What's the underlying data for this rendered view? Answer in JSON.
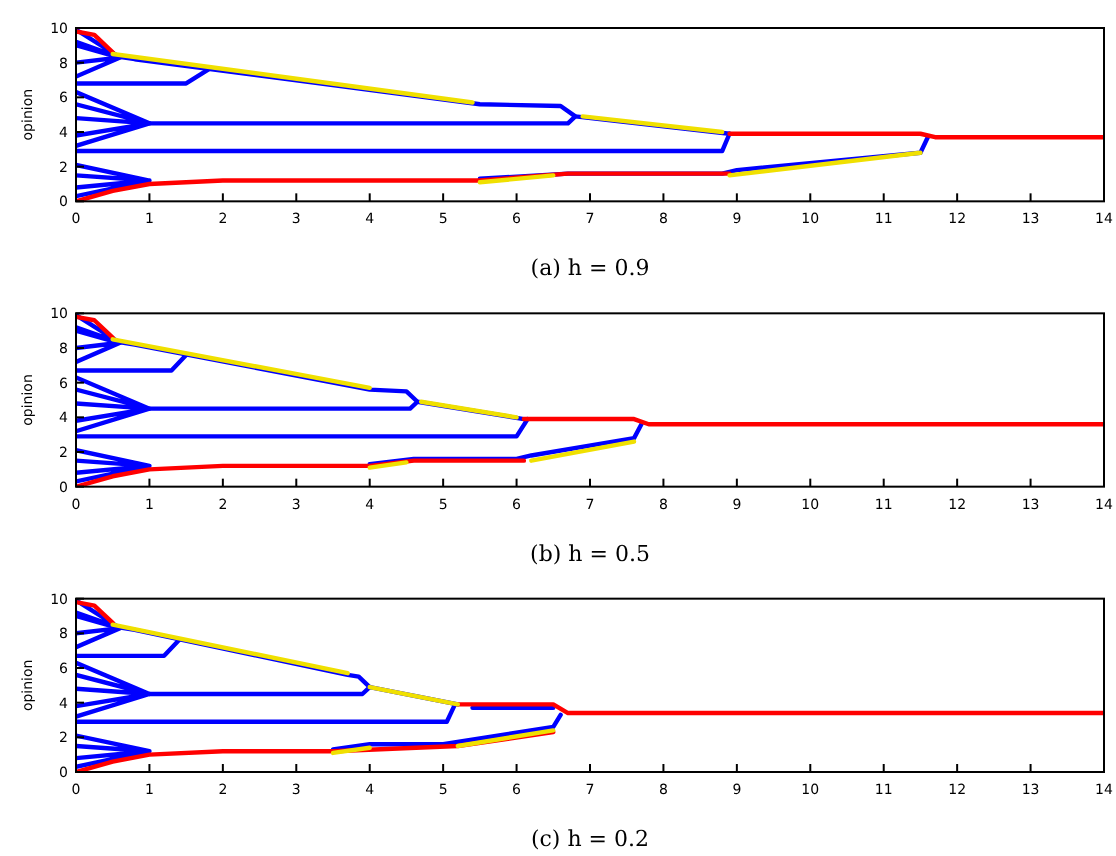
{
  "chart_data": [
    {
      "type": "line",
      "title": "(a) h = 0.9",
      "ylabel": "opinion",
      "xlim": [
        0,
        14
      ],
      "xticks": [
        0,
        1,
        2,
        3,
        4,
        5,
        6,
        7,
        8,
        9,
        10,
        11,
        12,
        13,
        14
      ],
      "ylim": [
        0,
        10
      ],
      "yticks": [
        0,
        2,
        4,
        6,
        8,
        10
      ],
      "series": [
        {
          "color": "#0000ff",
          "x": [
            0,
            0.6,
            0,
            0.6,
            0,
            0.6,
            0
          ],
          "values": [
            9.9,
            8.3,
            9.2,
            8.3,
            8.0,
            8.3,
            7.2
          ]
        },
        {
          "color": "#0000ff",
          "x": [
            0,
            1,
            0,
            1,
            0,
            1,
            0,
            1,
            0
          ],
          "values": [
            6.3,
            4.5,
            5.6,
            4.5,
            4.8,
            4.5,
            3.8,
            4.5,
            3.2
          ]
        },
        {
          "color": "#0000ff",
          "x": [
            0,
            1,
            0,
            1,
            0,
            1,
            0
          ],
          "values": [
            2.1,
            1.2,
            1.5,
            1.2,
            0.8,
            1.2,
            0.3
          ]
        },
        {
          "color": "#0000ff",
          "x": [
            0,
            0.5,
            0.8,
            5.5,
            6.6,
            6.8,
            8.9
          ],
          "values": [
            9,
            8.4,
            8.2,
            5.6,
            5.5,
            4.9,
            3.9
          ]
        },
        {
          "color": "#0000ff",
          "x": [
            0,
            1.5,
            1.8
          ],
          "values": [
            6.8,
            6.8,
            7.6
          ]
        },
        {
          "color": "#0000ff",
          "x": [
            1,
            6.7,
            6.8
          ],
          "values": [
            4.5,
            4.5,
            4.9
          ]
        },
        {
          "color": "#0000ff",
          "x": [
            0,
            8.8,
            8.9
          ],
          "values": [
            2.9,
            2.9,
            3.9
          ]
        },
        {
          "color": "#0000ff",
          "x": [
            5.5,
            6.7,
            8.8,
            9,
            11.5,
            11.6
          ],
          "values": [
            1.3,
            1.6,
            1.6,
            1.8,
            2.8,
            3.7
          ]
        },
        {
          "color": "#ff0000",
          "x": [
            0,
            0.25,
            0.5
          ],
          "values": [
            9.8,
            9.6,
            8.6
          ]
        },
        {
          "color": "#ff0000",
          "x": [
            0,
            0.5,
            1,
            2,
            5.5,
            6.7,
            8.9
          ],
          "values": [
            0,
            0.6,
            1.0,
            1.2,
            1.2,
            1.6,
            1.6
          ]
        },
        {
          "color": "#ff0000",
          "x": [
            8.9,
            11.5,
            11.7,
            14
          ],
          "values": [
            3.9,
            3.9,
            3.7,
            3.7
          ]
        },
        {
          "color": "#f0e000",
          "x": [
            0.5,
            5.4
          ],
          "values": [
            8.5,
            5.7
          ]
        },
        {
          "color": "#f0e000",
          "x": [
            6.9,
            8.8
          ],
          "values": [
            4.9,
            4.0
          ]
        },
        {
          "color": "#f0e000",
          "x": [
            5.5,
            6.5
          ],
          "values": [
            1.1,
            1.5
          ]
        },
        {
          "color": "#f0e000",
          "x": [
            8.9,
            11.5
          ],
          "values": [
            1.5,
            2.8
          ]
        }
      ]
    },
    {
      "type": "line",
      "title": "(b) h = 0.5",
      "ylabel": "opinion",
      "xlim": [
        0,
        14
      ],
      "xticks": [
        0,
        1,
        2,
        3,
        4,
        5,
        6,
        7,
        8,
        9,
        10,
        11,
        12,
        13,
        14
      ],
      "ylim": [
        0,
        10
      ],
      "yticks": [
        0,
        2,
        4,
        6,
        8,
        10
      ],
      "series": [
        {
          "color": "#0000ff",
          "x": [
            0,
            0.6,
            0,
            0.6,
            0,
            0.6,
            0
          ],
          "values": [
            9.9,
            8.3,
            9.2,
            8.3,
            8.0,
            8.3,
            7.2
          ]
        },
        {
          "color": "#0000ff",
          "x": [
            0,
            1,
            0,
            1,
            0,
            1,
            0,
            1,
            0
          ],
          "values": [
            6.3,
            4.5,
            5.6,
            4.5,
            4.8,
            4.5,
            3.8,
            4.5,
            3.2
          ]
        },
        {
          "color": "#0000ff",
          "x": [
            0,
            1,
            0,
            1,
            0,
            1,
            0
          ],
          "values": [
            2.1,
            1.2,
            1.5,
            1.2,
            0.8,
            1.2,
            0.3
          ]
        },
        {
          "color": "#0000ff",
          "x": [
            0,
            0.5,
            0.8,
            4.0,
            4.5,
            4.65,
            6.1
          ],
          "values": [
            9,
            8.4,
            8.2,
            5.6,
            5.5,
            4.9,
            3.9
          ]
        },
        {
          "color": "#0000ff",
          "x": [
            0,
            1.3,
            1.5
          ],
          "values": [
            6.7,
            6.7,
            7.6
          ]
        },
        {
          "color": "#0000ff",
          "x": [
            1,
            4.55,
            4.65
          ],
          "values": [
            4.5,
            4.5,
            4.9
          ]
        },
        {
          "color": "#0000ff",
          "x": [
            0,
            6.0,
            6.15
          ],
          "values": [
            2.9,
            2.9,
            3.9
          ]
        },
        {
          "color": "#0000ff",
          "x": [
            4.0,
            4.6,
            6.0,
            6.2,
            7.6,
            7.7
          ],
          "values": [
            1.3,
            1.6,
            1.6,
            1.8,
            2.8,
            3.6
          ]
        },
        {
          "color": "#ff0000",
          "x": [
            0,
            0.25,
            0.5
          ],
          "values": [
            9.8,
            9.6,
            8.6
          ]
        },
        {
          "color": "#ff0000",
          "x": [
            0,
            0.5,
            1,
            2,
            4,
            4.6,
            6.1
          ],
          "values": [
            0,
            0.6,
            1.0,
            1.2,
            1.2,
            1.5,
            1.5
          ]
        },
        {
          "color": "#ff0000",
          "x": [
            6.1,
            7.6,
            7.8,
            14
          ],
          "values": [
            3.9,
            3.9,
            3.6,
            3.6
          ]
        },
        {
          "color": "#f0e000",
          "x": [
            0.5,
            4.0
          ],
          "values": [
            8.5,
            5.7
          ]
        },
        {
          "color": "#f0e000",
          "x": [
            4.7,
            6.0
          ],
          "values": [
            4.9,
            4.0
          ]
        },
        {
          "color": "#f0e000",
          "x": [
            4.0,
            4.5
          ],
          "values": [
            1.1,
            1.4
          ]
        },
        {
          "color": "#f0e000",
          "x": [
            6.2,
            7.6
          ],
          "values": [
            1.5,
            2.6
          ]
        }
      ]
    },
    {
      "type": "line",
      "title": "(c) h = 0.2",
      "ylabel": "opinion",
      "xlim": [
        0,
        14
      ],
      "xticks": [
        0,
        1,
        2,
        3,
        4,
        5,
        6,
        7,
        8,
        9,
        10,
        11,
        12,
        13,
        14
      ],
      "ylim": [
        0,
        10
      ],
      "yticks": [
        0,
        2,
        4,
        6,
        8,
        10
      ],
      "series": [
        {
          "color": "#0000ff",
          "x": [
            0,
            0.6,
            0,
            0.6,
            0,
            0.6,
            0
          ],
          "values": [
            9.9,
            8.3,
            9.2,
            8.3,
            8.0,
            8.3,
            7.2
          ]
        },
        {
          "color": "#0000ff",
          "x": [
            0,
            1,
            0,
            1,
            0,
            1,
            0,
            1,
            0
          ],
          "values": [
            6.3,
            4.5,
            5.6,
            4.5,
            4.8,
            4.5,
            3.8,
            4.5,
            3.2
          ]
        },
        {
          "color": "#0000ff",
          "x": [
            0,
            1,
            0,
            1,
            0,
            1,
            0
          ],
          "values": [
            2.1,
            1.2,
            1.5,
            1.2,
            0.8,
            1.2,
            0.3
          ]
        },
        {
          "color": "#0000ff",
          "x": [
            0,
            0.5,
            0.8,
            3.7,
            3.85,
            4.0,
            5.2
          ],
          "values": [
            9,
            8.4,
            8.2,
            5.6,
            5.5,
            4.9,
            3.9
          ]
        },
        {
          "color": "#0000ff",
          "x": [
            0,
            1.2,
            1.4
          ],
          "values": [
            6.7,
            6.7,
            7.6
          ]
        },
        {
          "color": "#0000ff",
          "x": [
            1,
            3.9,
            4.0
          ],
          "values": [
            4.5,
            4.5,
            4.9
          ]
        },
        {
          "color": "#0000ff",
          "x": [
            0,
            5.05,
            5.15
          ],
          "values": [
            2.9,
            2.9,
            3.8
          ]
        },
        {
          "color": "#0000ff",
          "x": [
            5.4,
            6.5
          ],
          "values": [
            3.7,
            3.7
          ]
        },
        {
          "color": "#0000ff",
          "x": [
            3.5,
            4.0,
            5.0,
            6.5,
            6.6
          ],
          "values": [
            1.3,
            1.6,
            1.6,
            2.6,
            3.3
          ]
        },
        {
          "color": "#ff0000",
          "x": [
            0,
            0.25,
            0.5
          ],
          "values": [
            9.8,
            9.6,
            8.6
          ]
        },
        {
          "color": "#ff0000",
          "x": [
            0,
            0.5,
            1,
            2,
            3.5,
            5.2,
            6.5
          ],
          "values": [
            0,
            0.6,
            1.0,
            1.2,
            1.2,
            1.5,
            2.3
          ]
        },
        {
          "color": "#ff0000",
          "x": [
            5.2,
            6.5,
            6.7,
            14
          ],
          "values": [
            3.9,
            3.9,
            3.4,
            3.4
          ]
        },
        {
          "color": "#f0e000",
          "x": [
            0.5,
            3.7
          ],
          "values": [
            8.5,
            5.7
          ]
        },
        {
          "color": "#f0e000",
          "x": [
            4.0,
            5.2
          ],
          "values": [
            4.9,
            3.9
          ]
        },
        {
          "color": "#f0e000",
          "x": [
            3.5,
            4.0
          ],
          "values": [
            1.1,
            1.4
          ]
        },
        {
          "color": "#f0e000",
          "x": [
            5.2,
            6.5
          ],
          "values": [
            1.5,
            2.4
          ]
        }
      ]
    }
  ]
}
